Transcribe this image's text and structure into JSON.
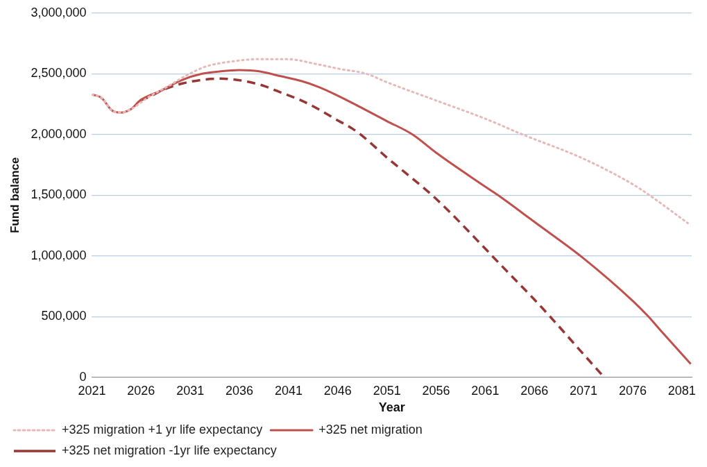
{
  "chart_data": {
    "type": "line",
    "xlabel": "Year",
    "ylabel": "Fund balance",
    "xlim": [
      2021,
      2082
    ],
    "xticks": [
      2021,
      2026,
      2031,
      2036,
      2041,
      2046,
      2051,
      2056,
      2061,
      2066,
      2071,
      2076,
      2081
    ],
    "ylim": [
      0,
      3000000
    ],
    "yticks": [
      0,
      {
        "value": 500000,
        "label": "500,000"
      },
      {
        "value": 1000000,
        "label": "1,000,000"
      },
      {
        "value": 1500000,
        "label": "1,500,000"
      },
      {
        "value": 2000000,
        "label": "2,000,000"
      },
      {
        "value": 2500000,
        "label": "2,500,000"
      },
      {
        "value": 3000000,
        "label": "3,000,000"
      }
    ],
    "grid": "y",
    "legend": "bottom",
    "marker": "none",
    "series": [
      {
        "name": "+325 migration +1 yr life expectancy",
        "color": "#e6b9b8",
        "line_style": "dotted",
        "x": [
          2021,
          2022,
          2023,
          2023.9,
          2025,
          2026.8,
          2028.8,
          2030.7,
          2032.6,
          2035.1,
          2038,
          2040.9,
          2043.8,
          2046.2,
          2048.9,
          2051,
          2056,
          2061,
          2064.8,
          2071,
          2076,
          2077.7,
          2081.6
        ],
        "values": [
          2330000,
          2300000,
          2200000,
          2180000,
          2210000,
          2310000,
          2400000,
          2490000,
          2560000,
          2600000,
          2620000,
          2620000,
          2580000,
          2540000,
          2500000,
          2430000,
          2280000,
          2130000,
          2000000,
          1800000,
          1590000,
          1500000,
          1270000
        ]
      },
      {
        "name": "+325 net migration",
        "color": "#c0504d",
        "line_style": "solid",
        "x": [
          2021,
          2022,
          2023,
          2023.9,
          2025,
          2025.9,
          2028,
          2030.2,
          2032.2,
          2034.1,
          2036,
          2038,
          2040.2,
          2042.3,
          2044.1,
          2046,
          2051,
          2053.6,
          2056,
          2061,
          2062.3,
          2066,
          2071,
          2076,
          2077.6,
          2078.9,
          2081.9
        ],
        "values": [
          2330000,
          2300000,
          2200000,
          2180000,
          2210000,
          2280000,
          2360000,
          2450000,
          2500000,
          2520000,
          2530000,
          2520000,
          2480000,
          2440000,
          2390000,
          2320000,
          2110000,
          2000000,
          1850000,
          1570000,
          1500000,
          1280000,
          980000,
          630000,
          500000,
          380000,
          110000
        ]
      },
      {
        "name": "+325 net migration -1yr life expectancy",
        "color": "#953735",
        "line_style": "dashed",
        "x": [
          2025.9,
          2026.8,
          2028.3,
          2030.2,
          2032.2,
          2034.1,
          2036.5,
          2038.5,
          2040.4,
          2042.3,
          2044,
          2045.7,
          2048,
          2051,
          2056,
          2061,
          2061.7,
          2066,
          2067.6,
          2071,
          2073.1
        ],
        "values": [
          2280000,
          2310000,
          2370000,
          2420000,
          2450000,
          2460000,
          2440000,
          2400000,
          2340000,
          2280000,
          2210000,
          2130000,
          2020000,
          1810000,
          1470000,
          1060000,
          1000000,
          640000,
          500000,
          190000,
          0
        ]
      }
    ]
  }
}
